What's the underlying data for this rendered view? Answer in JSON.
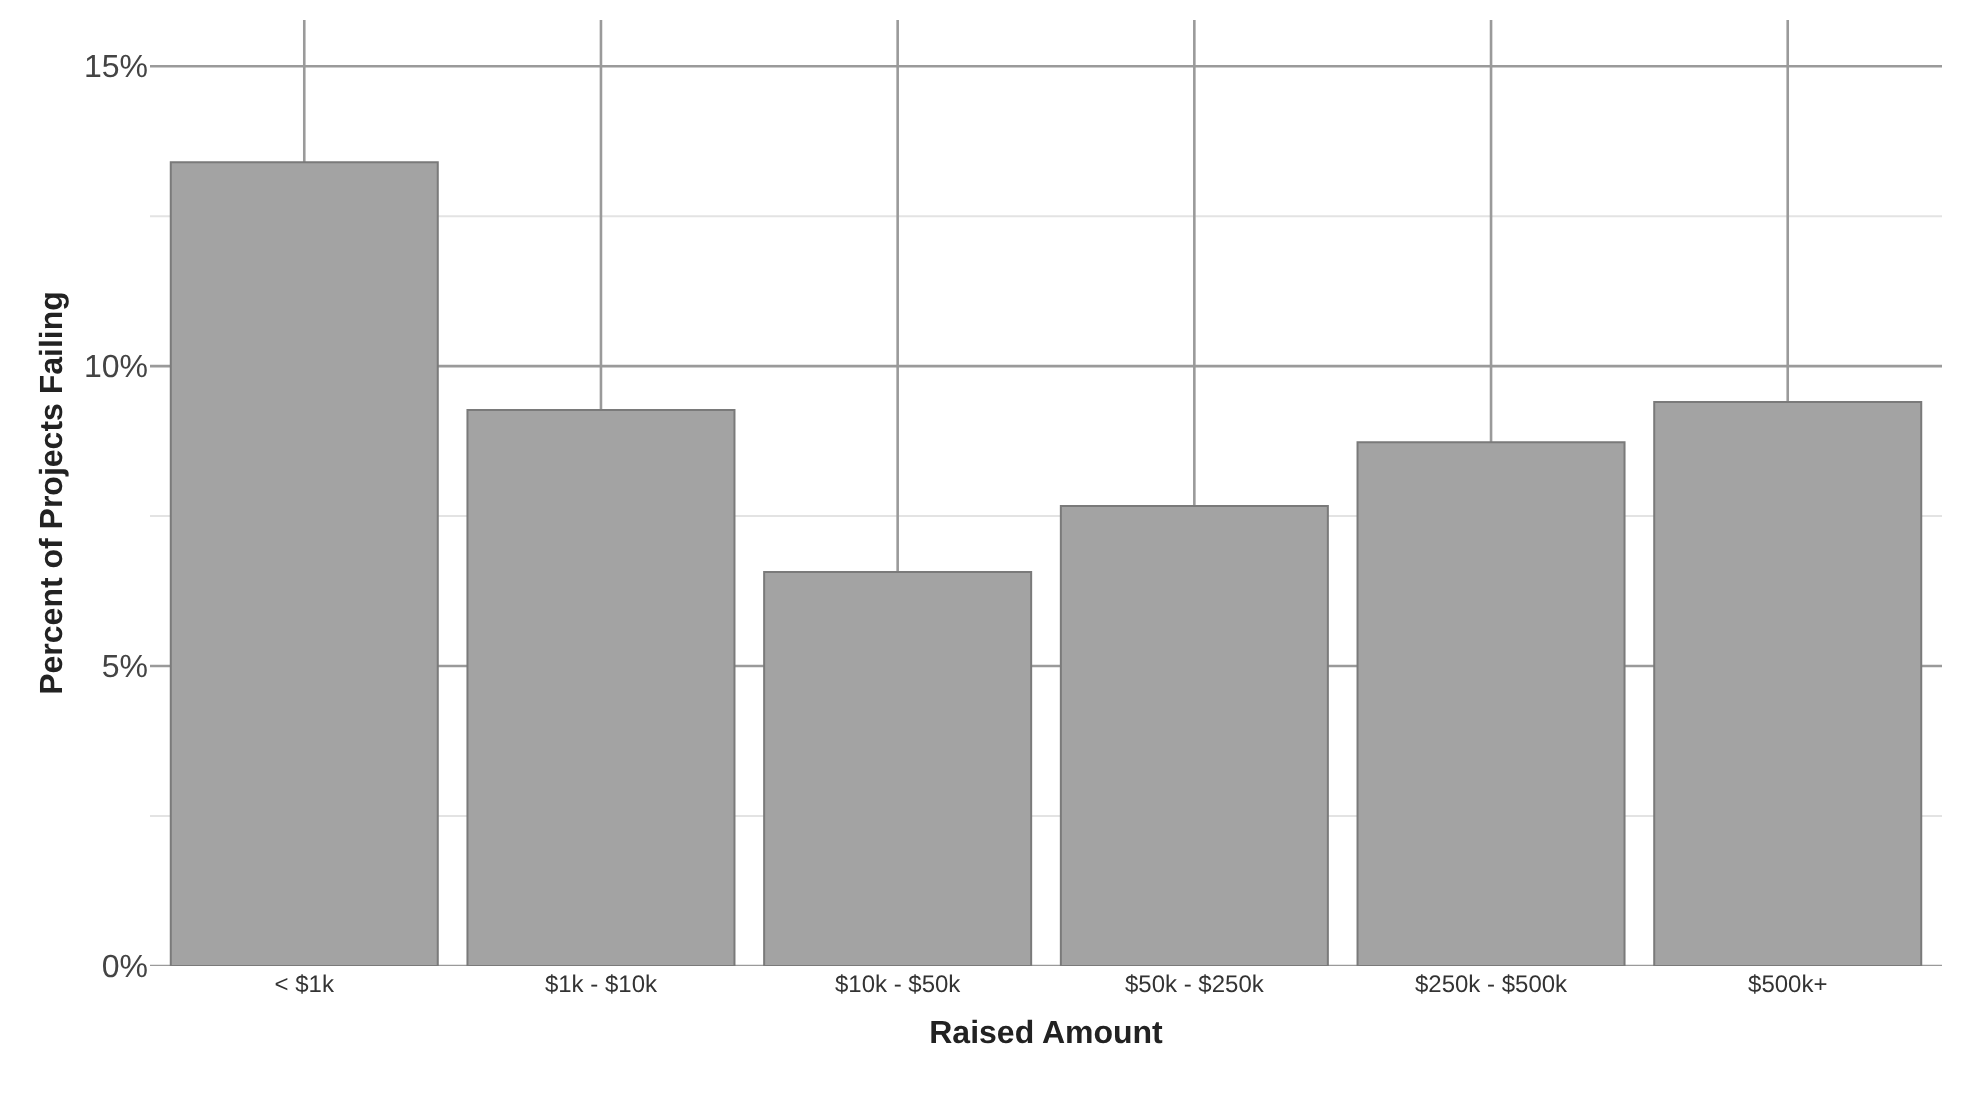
{
  "chart_data": {
    "type": "bar",
    "xlabel": "Raised Amount",
    "ylabel": "Percent of Projects Failing",
    "categories": [
      "< $1k",
      "$1k - $10k",
      "$10k - $50k",
      "$50k - $250k",
      "$250k - $500k",
      "$500k+"
    ],
    "values": [
      13.4,
      9.27,
      6.57,
      7.67,
      8.73,
      9.4
    ],
    "color": "#a3a3a3",
    "ylim": [
      0,
      15.77
    ],
    "yticks": [
      {
        "value": 0,
        "label": "0%"
      },
      {
        "value": 2.5,
        "label": null
      },
      {
        "value": 5,
        "label": "5%"
      },
      {
        "value": 7.5,
        "label": null
      },
      {
        "value": 10,
        "label": "10%"
      },
      {
        "value": 12.5,
        "label": null
      },
      {
        "value": 15,
        "label": "15%"
      }
    ],
    "grid": true,
    "legend": false
  }
}
